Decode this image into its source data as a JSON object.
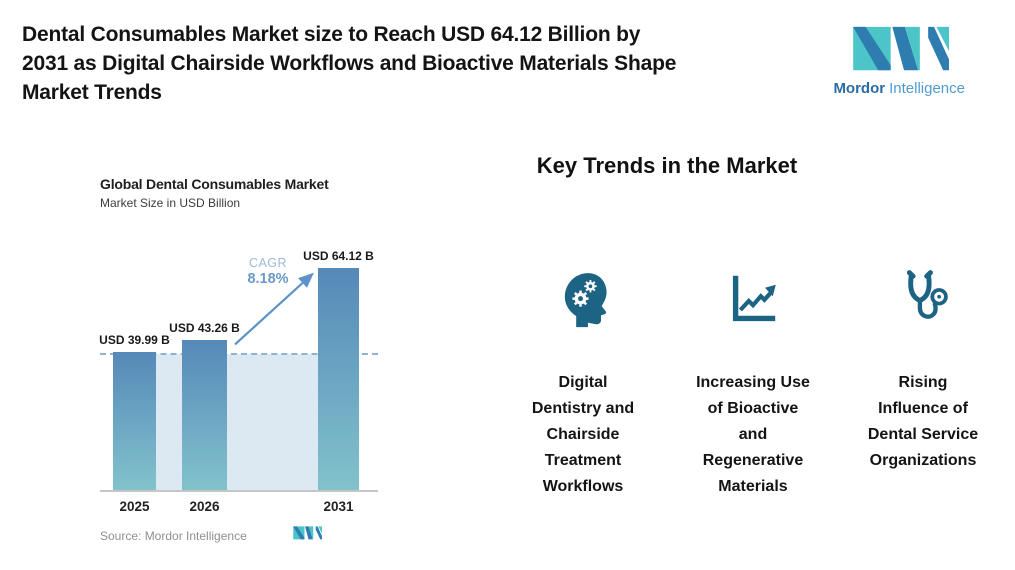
{
  "page": {
    "title": "Dental Consumables Market size to Reach USD 64.12 Billion by 2031 as Digital Chairside Workflows and Bioactive Materials Shape Market Trends",
    "title_lines": [
      "Dental Consumables Market size to Reach USD 64.12 Billion by",
      "2031 as Digital Chairside Workflows and Bioactive Materials Shape",
      "Market Trends"
    ]
  },
  "brand": {
    "name_primary": "Mordor",
    "name_secondary": "Intelligence",
    "logo_icon": "mordor-intelligence-monogram",
    "colors": {
      "dark_blue": "#2e7cb0",
      "teal": "#4cc5c9"
    }
  },
  "chart_data": {
    "type": "bar",
    "title": "Global Dental Consumables Market",
    "subtitle": "Market Size in USD Billion",
    "unit": "USD Billion",
    "categories": [
      "2025",
      "2026",
      "2031"
    ],
    "values": [
      39.99,
      43.26,
      64.12
    ],
    "bar_labels": [
      "USD 39.99 B",
      "USD 43.26 B",
      "USD 64.12 B"
    ],
    "cagr_label": "CAGR",
    "cagr_value": "8.18%",
    "reference_line_value": 39.99,
    "ylim": [
      0,
      70
    ],
    "grid": false,
    "legend": false,
    "source": "Source: Mordor Intelligence",
    "colors": {
      "bar_gradient_top": "#5589b8",
      "bar_gradient_bottom": "#82c2cb",
      "reference_line": "#8fb4d1",
      "shade_region": "#dce8f2",
      "arrow": "#5d93c6",
      "cagr_caption": "#9dbbd9",
      "cagr_value": "#6998c9"
    }
  },
  "key_trends": {
    "heading": "Key Trends in the Market",
    "icon_color": "#1d6384",
    "items": [
      {
        "icon": "head-gears-icon",
        "label": "Digital Dentistry and Chairside Treatment Workflows",
        "label_lines": [
          "Digital",
          "Dentistry and",
          "Chairside",
          "Treatment",
          "Workflows"
        ]
      },
      {
        "icon": "line-chart-growth-icon",
        "label": "Increasing Use of Bioactive and Regenerative Materials",
        "label_lines": [
          "Increasing Use",
          "of Bioactive",
          "and",
          "Regenerative",
          "Materials"
        ]
      },
      {
        "icon": "stethoscope-icon",
        "label": "Rising Influence of Dental Service Organizations",
        "label_lines": [
          "Rising",
          "Influence of",
          "Dental Service",
          "Organizations"
        ]
      }
    ]
  }
}
